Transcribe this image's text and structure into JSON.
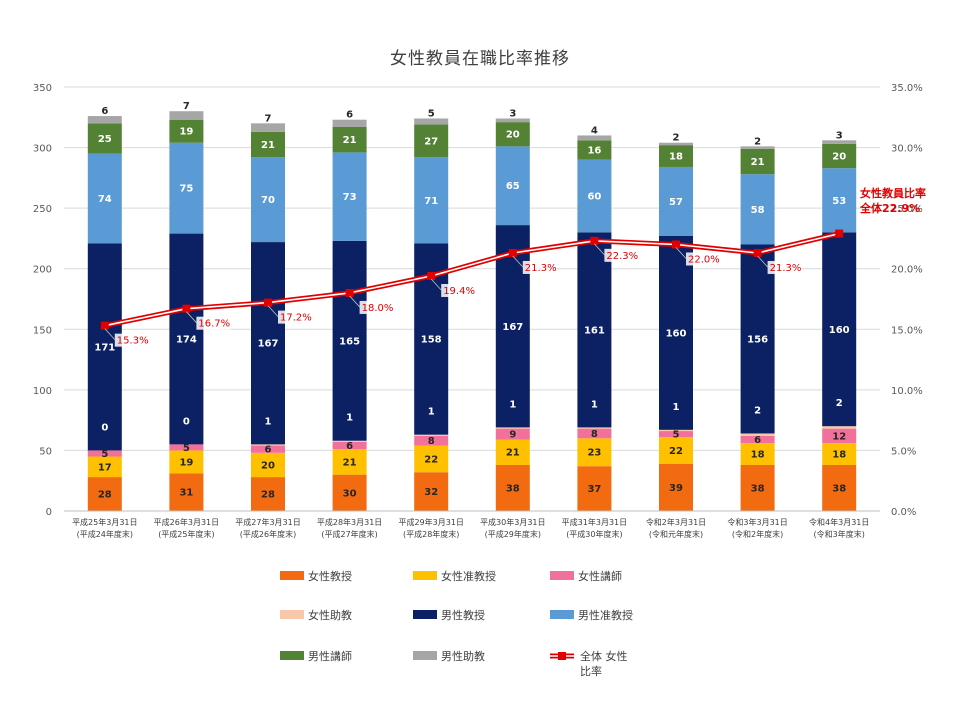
{
  "chart_data": {
    "type": "bar",
    "title": "女性教員在職比率推移",
    "categories": [
      [
        "平成25年3月31日",
        "(平成24年度末)"
      ],
      [
        "平成26年3月31日",
        "(平成25年度末)"
      ],
      [
        "平成27年3月31日",
        "(平成26年度末)"
      ],
      [
        "平成28年3月31日",
        "(平成27年度末)"
      ],
      [
        "平成29年3月31日",
        "(平成28年度末)"
      ],
      [
        "平成30年3月31日",
        "(平成29年度末)"
      ],
      [
        "平成31年3月31日",
        "(平成30年度末)"
      ],
      [
        "令和2年3月31日",
        "(令和元年度末)"
      ],
      [
        "令和3年3月31日",
        "(令和2年度末)"
      ],
      [
        "令和4年3月31日",
        "(令和3年度末)"
      ]
    ],
    "ylim": [
      0,
      350
    ],
    "yticks": [
      "0",
      "50",
      "100",
      "150",
      "200",
      "250",
      "300",
      "350"
    ],
    "y2lim": [
      0,
      35
    ],
    "y2ticks": [
      "0.0%",
      "5.0%",
      "10.0%",
      "15.0%",
      "20.0%",
      "25.0%",
      "30.0%",
      "35.0%"
    ],
    "series": [
      {
        "name": "女性教授",
        "color": "#f26b10",
        "label_color": "#262626",
        "values": [
          28,
          31,
          28,
          30,
          32,
          38,
          37,
          39,
          38,
          38
        ]
      },
      {
        "name": "女性准教授",
        "color": "#ffc000",
        "label_color": "#262626",
        "values": [
          17,
          19,
          20,
          21,
          22,
          21,
          23,
          22,
          18,
          18
        ]
      },
      {
        "name": "女性講師",
        "color": "#f2719a",
        "label_color": "#262626",
        "values": [
          5,
          5,
          6,
          6,
          8,
          9,
          8,
          5,
          6,
          12
        ]
      },
      {
        "name": "女性助教",
        "color": "#f8c8a8",
        "label_color": "#262626",
        "values": [
          0,
          0,
          1,
          1,
          1,
          1,
          1,
          1,
          2,
          2
        ]
      },
      {
        "name": "男性教授",
        "color": "#0c2163",
        "label_color": "#ffffff",
        "values": [
          171,
          174,
          167,
          165,
          158,
          167,
          161,
          160,
          156,
          160
        ]
      },
      {
        "name": "男性准教授",
        "color": "#5b9bd5",
        "label_color": "#ffffff",
        "values": [
          74,
          75,
          70,
          73,
          71,
          65,
          60,
          57,
          58,
          53
        ]
      },
      {
        "name": "男性講師",
        "color": "#548235",
        "label_color": "#ffffff",
        "values": [
          25,
          19,
          21,
          21,
          27,
          20,
          16,
          18,
          21,
          20
        ]
      },
      {
        "name": "男性助教",
        "color": "#a6a6a6",
        "label_color": "#262626",
        "values": [
          6,
          7,
          7,
          6,
          5,
          3,
          4,
          2,
          2,
          3
        ]
      }
    ],
    "line": {
      "name": "全体 女性比率",
      "legend_lines": [
        "全体 女性",
        "比率"
      ],
      "color": "#e00000",
      "values": [
        15.3,
        16.7,
        17.2,
        18.0,
        19.4,
        21.3,
        22.3,
        22.0,
        21.3,
        22.9
      ],
      "labels": [
        "15.3%",
        "16.7%",
        "17.2%",
        "18.0%",
        "19.4%",
        "21.3%",
        "22.3%",
        "22.0%",
        "21.3%",
        ""
      ]
    },
    "annotation": {
      "line1": "女性教員比率",
      "line2": "全体22.9%"
    },
    "legend_position": "bottom"
  }
}
